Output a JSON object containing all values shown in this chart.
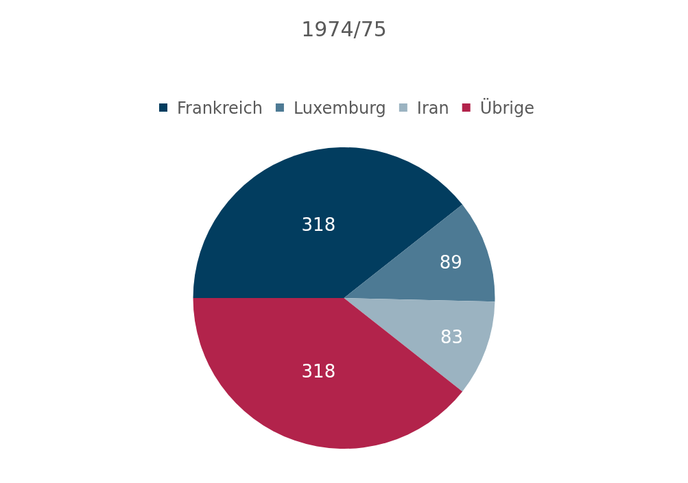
{
  "chart_data": {
    "type": "pie",
    "title": "1974/75",
    "categories": [
      "Frankreich",
      "Luxemburg",
      "Iran",
      "Übrige"
    ],
    "values": [
      318,
      89,
      83,
      318
    ],
    "colors": [
      "#023d5f",
      "#4d7a94",
      "#9bb3c1",
      "#b2234b"
    ],
    "data_labels": true,
    "legend": "top"
  }
}
